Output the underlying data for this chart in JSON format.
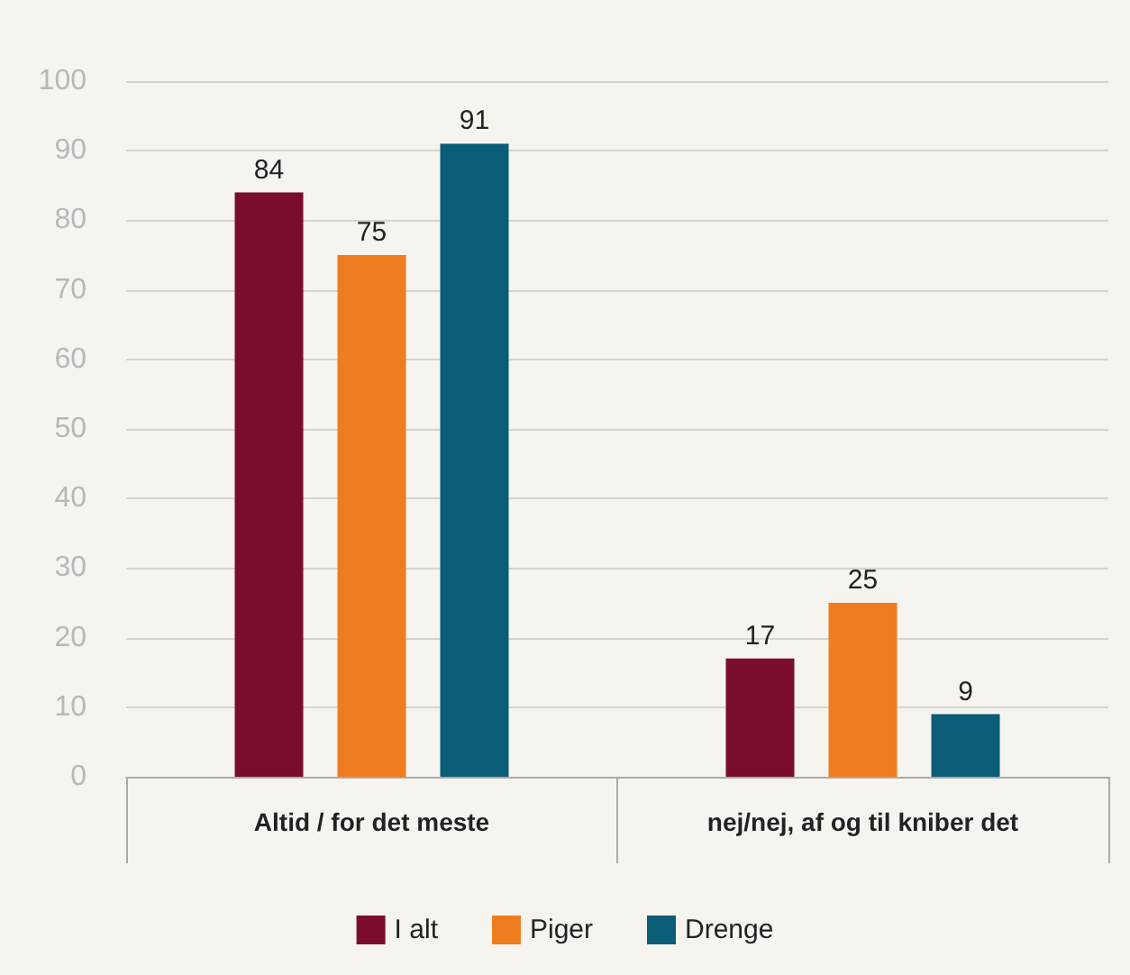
{
  "chart_data": {
    "type": "bar",
    "categories": [
      "Altid / for det meste",
      "nej/nej, af og til kniber det"
    ],
    "series": [
      {
        "name": "I alt",
        "color": "#7a0c2c",
        "values": [
          84,
          17
        ]
      },
      {
        "name": "Piger",
        "color": "#ef7d1f",
        "values": [
          75,
          25
        ]
      },
      {
        "name": "Drenge",
        "color": "#0b5c77",
        "values": [
          91,
          9
        ]
      }
    ],
    "ylim": [
      0,
      100
    ],
    "yticks": [
      0,
      10,
      20,
      30,
      40,
      50,
      60,
      70,
      80,
      90,
      100
    ],
    "grid": "y",
    "legend": "bottom",
    "data_labels": true
  }
}
